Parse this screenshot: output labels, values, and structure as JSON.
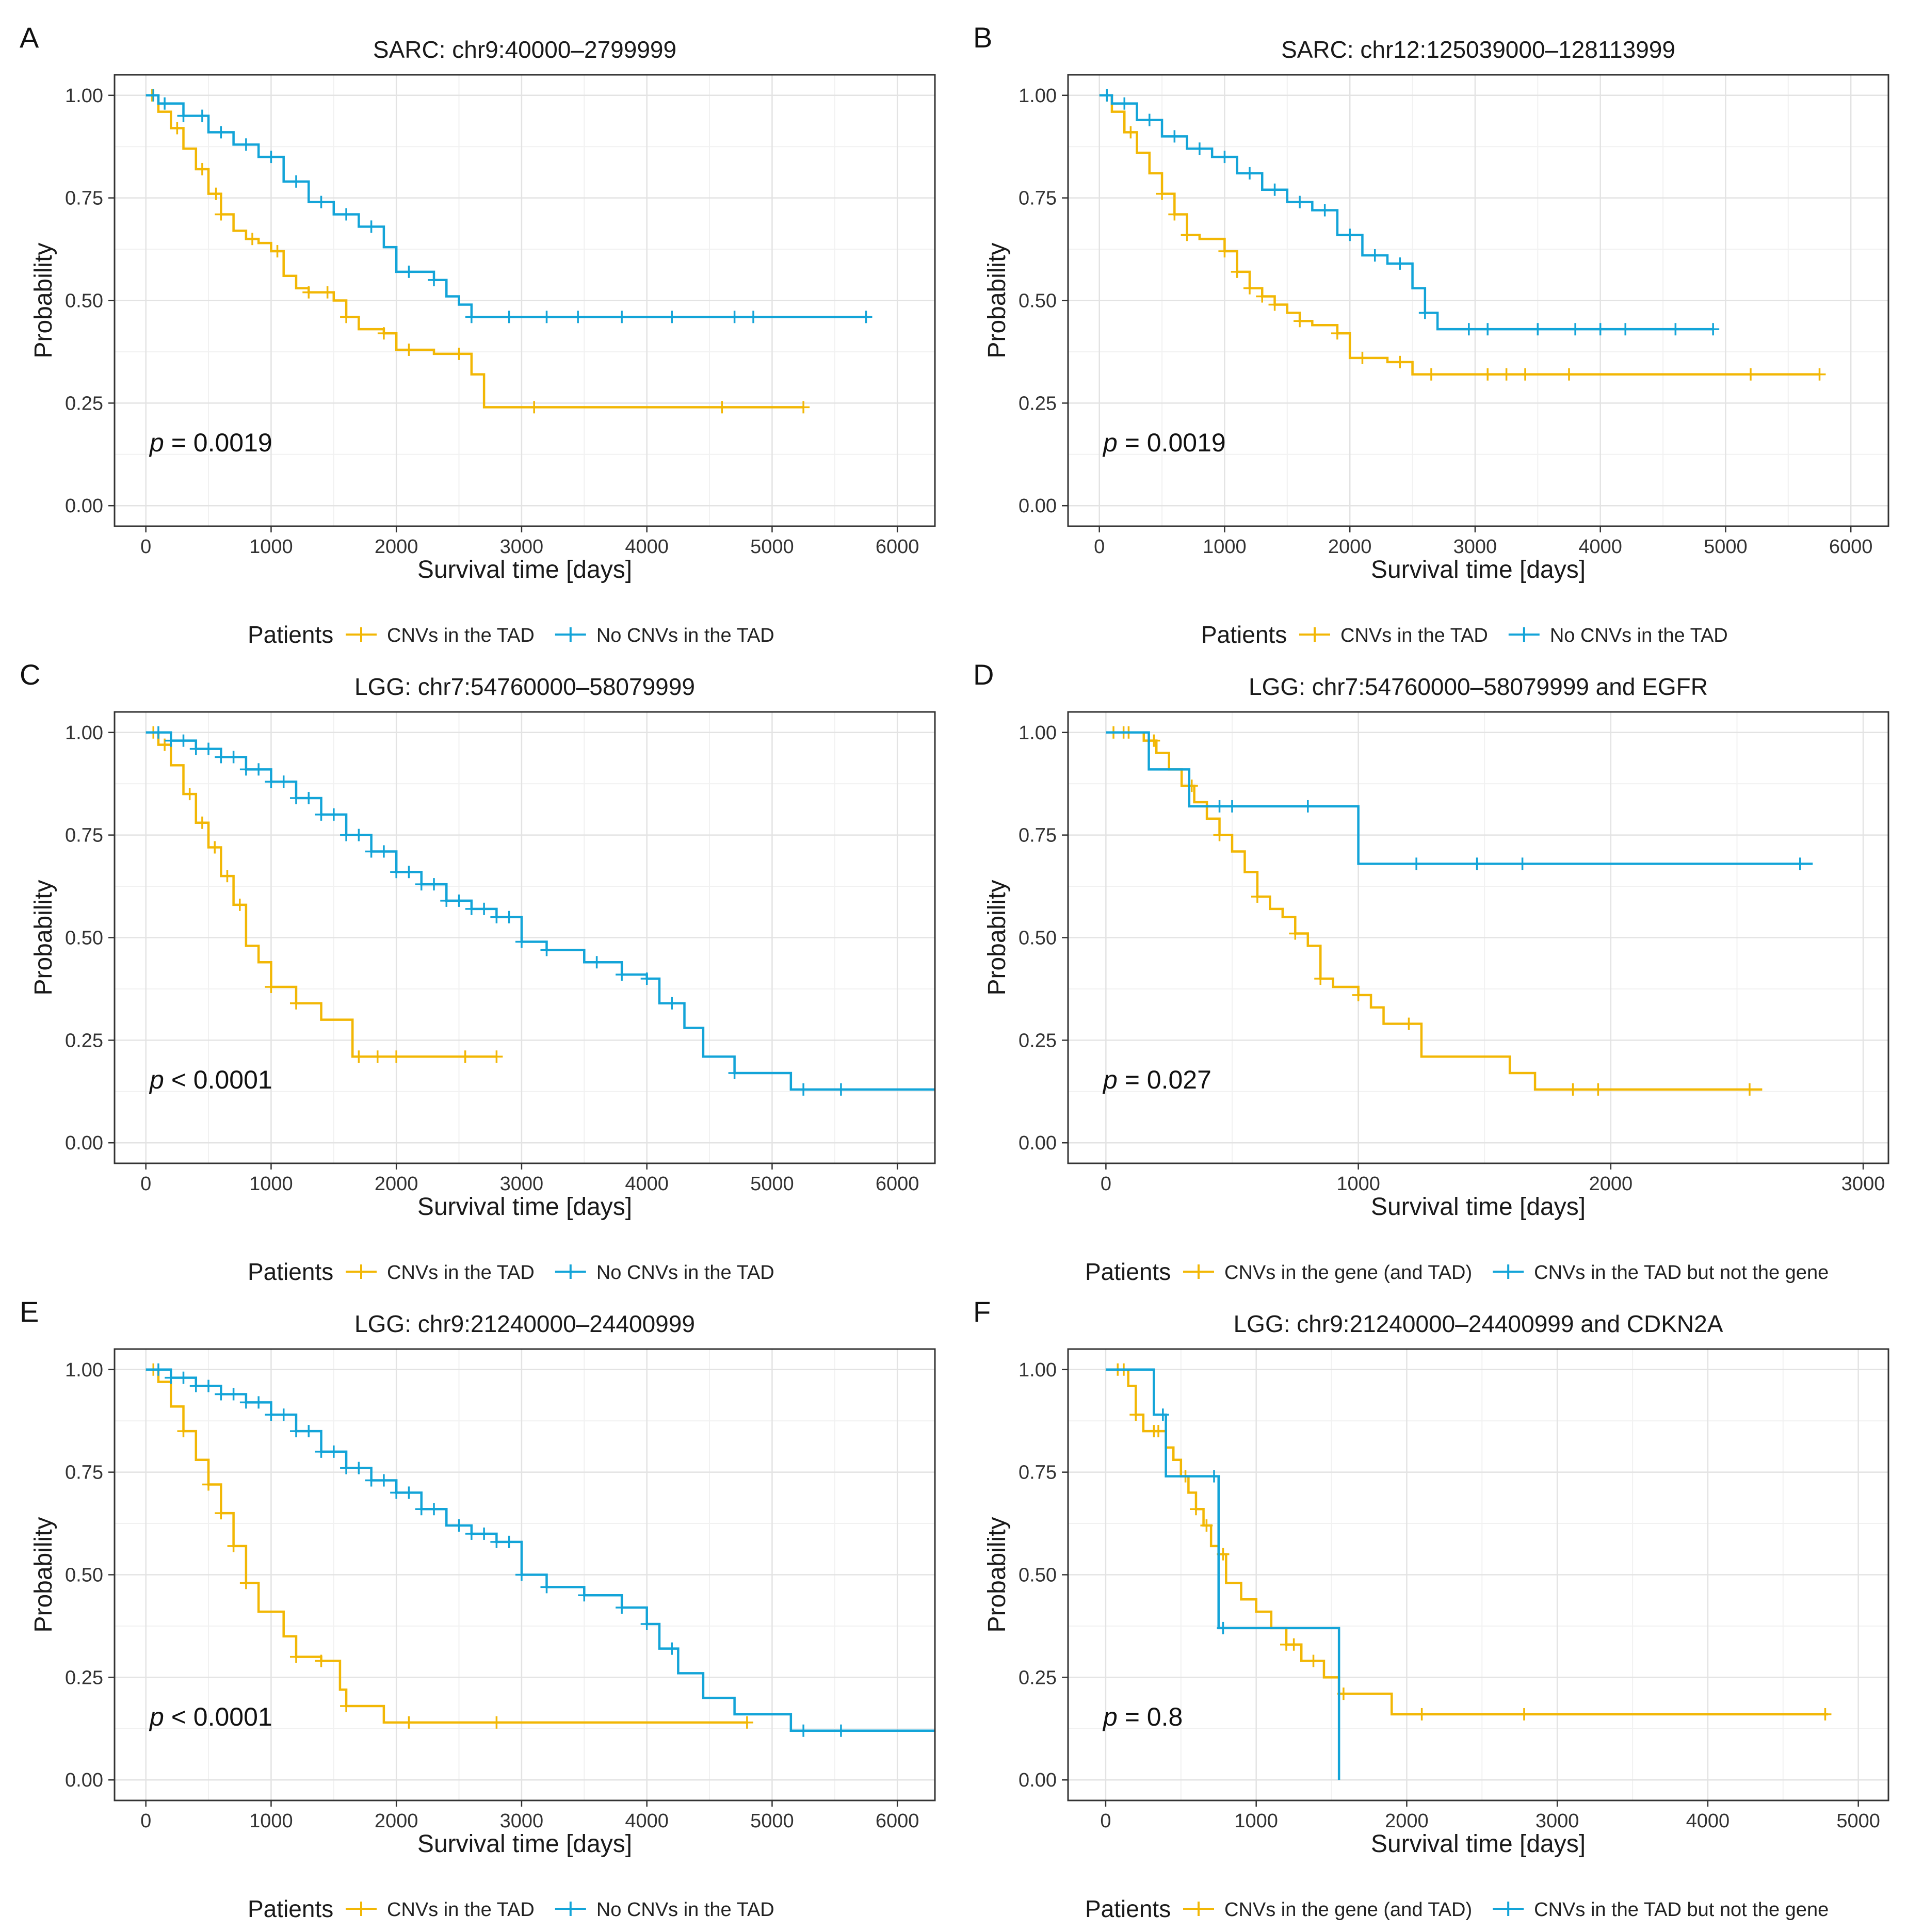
{
  "colors": {
    "yellow": "#f2b705",
    "blue": "#13a4d8"
  },
  "chart_data": [
    {
      "panel": "A",
      "type": "line",
      "title": "SARC: chr9:40000–2799999",
      "xlabel": "Survival time [days]",
      "ylabel": "Probability",
      "xlim": [
        -250,
        6300
      ],
      "xticks": [
        0,
        1000,
        2000,
        3000,
        4000,
        5000,
        6000
      ],
      "ylim": [
        0,
        1
      ],
      "yticks": [
        "0.00",
        "0.25",
        "0.50",
        "0.75",
        "1.00"
      ],
      "pvalue": {
        "italic": "p",
        "rest": " = 0.0019"
      },
      "legend": {
        "title": "Patients",
        "items": [
          "CNVs in the TAD",
          "No CNVs in the TAD"
        ]
      },
      "series": [
        {
          "name": "CNVs in the TAD",
          "color": "yellow",
          "x": [
            0,
            100,
            200,
            300,
            400,
            500,
            600,
            700,
            800,
            900,
            1000,
            1100,
            1200,
            1300,
            1500,
            1600,
            1700,
            1800,
            1900,
            2000,
            2300,
            2600,
            2700,
            3100,
            4600,
            5250
          ],
          "y": [
            1.0,
            0.96,
            0.92,
            0.87,
            0.82,
            0.76,
            0.71,
            0.67,
            0.65,
            0.64,
            0.62,
            0.56,
            0.53,
            0.52,
            0.5,
            0.46,
            0.43,
            0.43,
            0.42,
            0.38,
            0.37,
            0.32,
            0.24,
            0.24,
            0.24,
            0.24
          ],
          "censor": [
            50,
            250,
            450,
            560,
            600,
            850,
            1050,
            1300,
            1450,
            1600,
            1900,
            2100,
            2500,
            3100,
            4600,
            5250
          ]
        },
        {
          "name": "No CNVs in the TAD",
          "color": "blue",
          "x": [
            0,
            100,
            300,
            500,
            700,
            900,
            1100,
            1300,
            1500,
            1700,
            1900,
            2000,
            2300,
            2400,
            2500,
            2600,
            2700,
            2900,
            3500,
            4000,
            4600,
            5100,
            5750
          ],
          "y": [
            1.0,
            0.98,
            0.95,
            0.91,
            0.88,
            0.85,
            0.79,
            0.74,
            0.71,
            0.68,
            0.63,
            0.57,
            0.55,
            0.51,
            0.49,
            0.46,
            0.46,
            0.46,
            0.46,
            0.46,
            0.46,
            0.46,
            0.46
          ],
          "censor": [
            60,
            150,
            300,
            450,
            600,
            800,
            1000,
            1200,
            1400,
            1600,
            1800,
            2100,
            2300,
            2600,
            2900,
            3200,
            3450,
            3800,
            4200,
            4700,
            4850,
            5750
          ]
        }
      ]
    },
    {
      "panel": "B",
      "type": "line",
      "title": "SARC: chr12:125039000–128113999",
      "xlabel": "Survival time [days]",
      "ylabel": "Probability",
      "xlim": [
        -250,
        6300
      ],
      "xticks": [
        0,
        1000,
        2000,
        3000,
        4000,
        5000,
        6000
      ],
      "ylim": [
        0,
        1
      ],
      "yticks": [
        "0.00",
        "0.25",
        "0.50",
        "0.75",
        "1.00"
      ],
      "pvalue": {
        "italic": "p",
        "rest": " = 0.0019"
      },
      "legend": {
        "title": "Patients",
        "items": [
          "CNVs in the TAD",
          "No CNVs in the TAD"
        ]
      },
      "series": [
        {
          "name": "CNVs in the TAD",
          "color": "yellow",
          "x": [
            0,
            100,
            200,
            300,
            400,
            500,
            600,
            700,
            800,
            1000,
            1100,
            1200,
            1300,
            1400,
            1500,
            1600,
            1700,
            1900,
            2000,
            2300,
            2500,
            2700,
            3000,
            3800,
            5200,
            5750
          ],
          "y": [
            1.0,
            0.96,
            0.91,
            0.86,
            0.81,
            0.76,
            0.71,
            0.66,
            0.65,
            0.62,
            0.57,
            0.53,
            0.51,
            0.49,
            0.47,
            0.45,
            0.44,
            0.42,
            0.36,
            0.35,
            0.32,
            0.32,
            0.32,
            0.32,
            0.32,
            0.32
          ],
          "censor": [
            60,
            250,
            500,
            600,
            700,
            1000,
            1100,
            1200,
            1300,
            1400,
            1600,
            1900,
            2100,
            2400,
            2650,
            3100,
            3250,
            3400,
            3750,
            5200,
            5750
          ]
        },
        {
          "name": "No CNVs in the TAD",
          "color": "blue",
          "x": [
            0,
            100,
            300,
            500,
            700,
            900,
            1100,
            1300,
            1500,
            1700,
            1900,
            2100,
            2300,
            2500,
            2600,
            2700,
            2900,
            3500,
            4000,
            4500,
            4900
          ],
          "y": [
            1.0,
            0.98,
            0.94,
            0.9,
            0.87,
            0.85,
            0.81,
            0.77,
            0.74,
            0.72,
            0.66,
            0.61,
            0.59,
            0.53,
            0.47,
            0.43,
            0.43,
            0.43,
            0.43,
            0.43,
            0.43
          ],
          "censor": [
            60,
            200,
            400,
            600,
            800,
            1000,
            1200,
            1400,
            1600,
            1800,
            2000,
            2200,
            2400,
            2600,
            2950,
            3100,
            3500,
            3800,
            4000,
            4200,
            4600,
            4900
          ]
        }
      ]
    },
    {
      "panel": "C",
      "type": "line",
      "title": "LGG: chr7:54760000–58079999",
      "xlabel": "Survival time [days]",
      "ylabel": "Probability",
      "xlim": [
        -250,
        6300
      ],
      "xticks": [
        0,
        1000,
        2000,
        3000,
        4000,
        5000,
        6000
      ],
      "ylim": [
        0,
        1
      ],
      "yticks": [
        "0.00",
        "0.25",
        "0.50",
        "0.75",
        "1.00"
      ],
      "pvalue": {
        "italic": "p",
        "rest": " < 0.0001"
      },
      "legend": {
        "title": "Patients",
        "items": [
          "CNVs in the TAD",
          "No CNVs in the TAD"
        ]
      },
      "series": [
        {
          "name": "CNVs in the TAD",
          "color": "yellow",
          "x": [
            0,
            100,
            200,
            300,
            400,
            500,
            600,
            700,
            800,
            900,
            1000,
            1200,
            1400,
            1650,
            1900,
            2200,
            2600,
            2800
          ],
          "y": [
            1.0,
            0.97,
            0.92,
            0.85,
            0.78,
            0.72,
            0.65,
            0.58,
            0.48,
            0.44,
            0.38,
            0.34,
            0.3,
            0.21,
            0.21,
            0.21,
            0.21,
            0.21
          ],
          "censor": [
            60,
            150,
            350,
            450,
            550,
            650,
            750,
            1000,
            1200,
            1700,
            1850,
            2000,
            2550,
            2800
          ]
        },
        {
          "name": "No CNVs in the TAD",
          "color": "blue",
          "x": [
            0,
            200,
            400,
            600,
            800,
            1000,
            1200,
            1400,
            1600,
            1800,
            2000,
            2200,
            2400,
            2600,
            2800,
            3000,
            3200,
            3500,
            3800,
            4000,
            4100,
            4300,
            4450,
            4700,
            5150,
            5550,
            6300
          ],
          "y": [
            1.0,
            0.98,
            0.96,
            0.94,
            0.91,
            0.88,
            0.84,
            0.8,
            0.75,
            0.71,
            0.66,
            0.63,
            0.59,
            0.57,
            0.55,
            0.49,
            0.47,
            0.44,
            0.41,
            0.4,
            0.34,
            0.28,
            0.21,
            0.17,
            0.13,
            0.13,
            0.13
          ],
          "censor": [
            100,
            200,
            300,
            400,
            500,
            600,
            700,
            800,
            900,
            1000,
            1100,
            1200,
            1300,
            1400,
            1500,
            1600,
            1700,
            1800,
            1900,
            2000,
            2100,
            2200,
            2300,
            2400,
            2500,
            2600,
            2700,
            2800,
            2900,
            3000,
            3200,
            3600,
            3800,
            4000,
            4200,
            4700,
            5250,
            5550
          ]
        }
      ]
    },
    {
      "panel": "D",
      "type": "line",
      "title": "LGG: chr7:54760000–58079999 and EGFR",
      "xlabel": "Survival time [days]",
      "ylabel": "Probability",
      "xlim": [
        -150,
        3100
      ],
      "xticks": [
        0,
        1000,
        2000,
        3000
      ],
      "ylim": [
        0,
        1
      ],
      "yticks": [
        "0.00",
        "0.25",
        "0.50",
        "0.75",
        "1.00"
      ],
      "pvalue": {
        "italic": "p",
        "rest": " = 0.027"
      },
      "legend": {
        "title": "Patients",
        "items": [
          "CNVs in the gene (and TAD)",
          "CNVs in the TAD but not the gene"
        ]
      },
      "series": [
        {
          "name": "CNVs in the gene (and TAD)",
          "color": "yellow",
          "x": [
            0,
            150,
            200,
            250,
            300,
            350,
            400,
            450,
            500,
            550,
            600,
            650,
            700,
            750,
            800,
            850,
            900,
            1000,
            1050,
            1100,
            1250,
            1400,
            1600,
            1700,
            1900,
            2200,
            2600
          ],
          "y": [
            1.0,
            0.98,
            0.95,
            0.91,
            0.87,
            0.83,
            0.79,
            0.75,
            0.71,
            0.66,
            0.6,
            0.57,
            0.55,
            0.51,
            0.48,
            0.4,
            0.38,
            0.36,
            0.33,
            0.29,
            0.21,
            0.21,
            0.17,
            0.13,
            0.13,
            0.13,
            0.13
          ],
          "censor": [
            30,
            70,
            90,
            190,
            340,
            450,
            600,
            750,
            850,
            1000,
            1200,
            1850,
            1950,
            2550
          ]
        },
        {
          "name": "CNVs in the TAD but not the gene",
          "color": "blue",
          "x": [
            0,
            170,
            330,
            500,
            700,
            1000,
            1500,
            2000,
            2800
          ],
          "y": [
            1.0,
            0.91,
            0.82,
            0.82,
            0.82,
            0.68,
            0.68,
            0.68,
            0.68
          ],
          "censor": [
            450,
            500,
            800,
            1230,
            1470,
            1650,
            2750
          ]
        }
      ]
    },
    {
      "panel": "E",
      "type": "line",
      "title": "LGG: chr9:21240000–24400999",
      "xlabel": "Survival time [days]",
      "ylabel": "Probability",
      "xlim": [
        -250,
        6300
      ],
      "xticks": [
        0,
        1000,
        2000,
        3000,
        4000,
        5000,
        6000
      ],
      "ylim": [
        0,
        1
      ],
      "yticks": [
        "0.00",
        "0.25",
        "0.50",
        "0.75",
        "1.00"
      ],
      "pvalue": {
        "italic": "p",
        "rest": " < 0.0001"
      },
      "legend": {
        "title": "Patients",
        "items": [
          "CNVs in the TAD",
          "No CNVs in the TAD"
        ]
      },
      "series": [
        {
          "name": "CNVs in the TAD",
          "color": "yellow",
          "x": [
            0,
            100,
            200,
            300,
            400,
            500,
            600,
            700,
            800,
            900,
            1000,
            1100,
            1200,
            1400,
            1550,
            1600,
            1900,
            2100,
            2800,
            4800
          ],
          "y": [
            1.0,
            0.97,
            0.91,
            0.85,
            0.78,
            0.72,
            0.65,
            0.57,
            0.48,
            0.41,
            0.41,
            0.35,
            0.3,
            0.29,
            0.22,
            0.18,
            0.14,
            0.14,
            0.14,
            0.14
          ],
          "censor": [
            60,
            300,
            500,
            600,
            700,
            800,
            1200,
            1400,
            1600,
            2100,
            2800,
            4800
          ]
        },
        {
          "name": "No CNVs in the TAD",
          "color": "blue",
          "x": [
            0,
            200,
            400,
            600,
            800,
            1000,
            1200,
            1400,
            1600,
            1800,
            2000,
            2200,
            2400,
            2600,
            2800,
            3000,
            3200,
            3500,
            3800,
            4000,
            4100,
            4250,
            4450,
            4700,
            5150,
            5550,
            6300
          ],
          "y": [
            1.0,
            0.98,
            0.96,
            0.94,
            0.92,
            0.89,
            0.85,
            0.8,
            0.76,
            0.73,
            0.7,
            0.66,
            0.62,
            0.6,
            0.58,
            0.5,
            0.47,
            0.45,
            0.42,
            0.38,
            0.32,
            0.26,
            0.2,
            0.16,
            0.12,
            0.12,
            0.12
          ],
          "censor": [
            100,
            200,
            300,
            400,
            500,
            600,
            700,
            800,
            900,
            1000,
            1100,
            1200,
            1300,
            1400,
            1500,
            1600,
            1700,
            1800,
            1900,
            2000,
            2100,
            2200,
            2300,
            2500,
            2600,
            2700,
            2800,
            2900,
            3000,
            3200,
            3500,
            3800,
            4000,
            4200,
            5250,
            5550
          ]
        }
      ]
    },
    {
      "panel": "F",
      "type": "line",
      "title": "LGG: chr9:21240000–24400999 and CDKN2A",
      "xlabel": "Survival time [days]",
      "ylabel": "Probability",
      "xlim": [
        -250,
        5200
      ],
      "xticks": [
        0,
        1000,
        2000,
        3000,
        4000,
        5000
      ],
      "ylim": [
        0,
        1
      ],
      "yticks": [
        "0.00",
        "0.25",
        "0.50",
        "0.75",
        "1.00"
      ],
      "pvalue": {
        "italic": "p",
        "rest": " = 0.8"
      },
      "legend": {
        "title": "Patients",
        "items": [
          "CNVs in the gene (and TAD)",
          "CNVs in the TAD but not the gene"
        ]
      },
      "series": [
        {
          "name": "CNVs in the gene (and TAD)",
          "color": "yellow",
          "x": [
            0,
            150,
            200,
            250,
            300,
            400,
            450,
            500,
            550,
            600,
            650,
            700,
            750,
            800,
            900,
            1000,
            1100,
            1200,
            1300,
            1450,
            1550,
            1700,
            1900,
            2100,
            2800,
            4800
          ],
          "y": [
            1.0,
            0.96,
            0.89,
            0.85,
            0.85,
            0.81,
            0.78,
            0.74,
            0.7,
            0.66,
            0.62,
            0.57,
            0.55,
            0.48,
            0.44,
            0.41,
            0.37,
            0.33,
            0.29,
            0.25,
            0.21,
            0.21,
            0.16,
            0.16,
            0.16,
            0.16
          ],
          "censor": [
            80,
            120,
            200,
            320,
            350,
            530,
            600,
            670,
            780,
            1200,
            1250,
            1380,
            1580,
            2100,
            2780,
            4780
          ]
        },
        {
          "name": "CNVs in the TAD but not the gene",
          "color": "blue",
          "x": [
            0,
            320,
            400,
            700,
            750,
            1000,
            1300,
            1550,
            1550
          ],
          "y": [
            1.0,
            0.89,
            0.74,
            0.74,
            0.37,
            0.37,
            0.37,
            0.37,
            0.0
          ],
          "censor": [
            380,
            720,
            780
          ]
        }
      ]
    }
  ]
}
